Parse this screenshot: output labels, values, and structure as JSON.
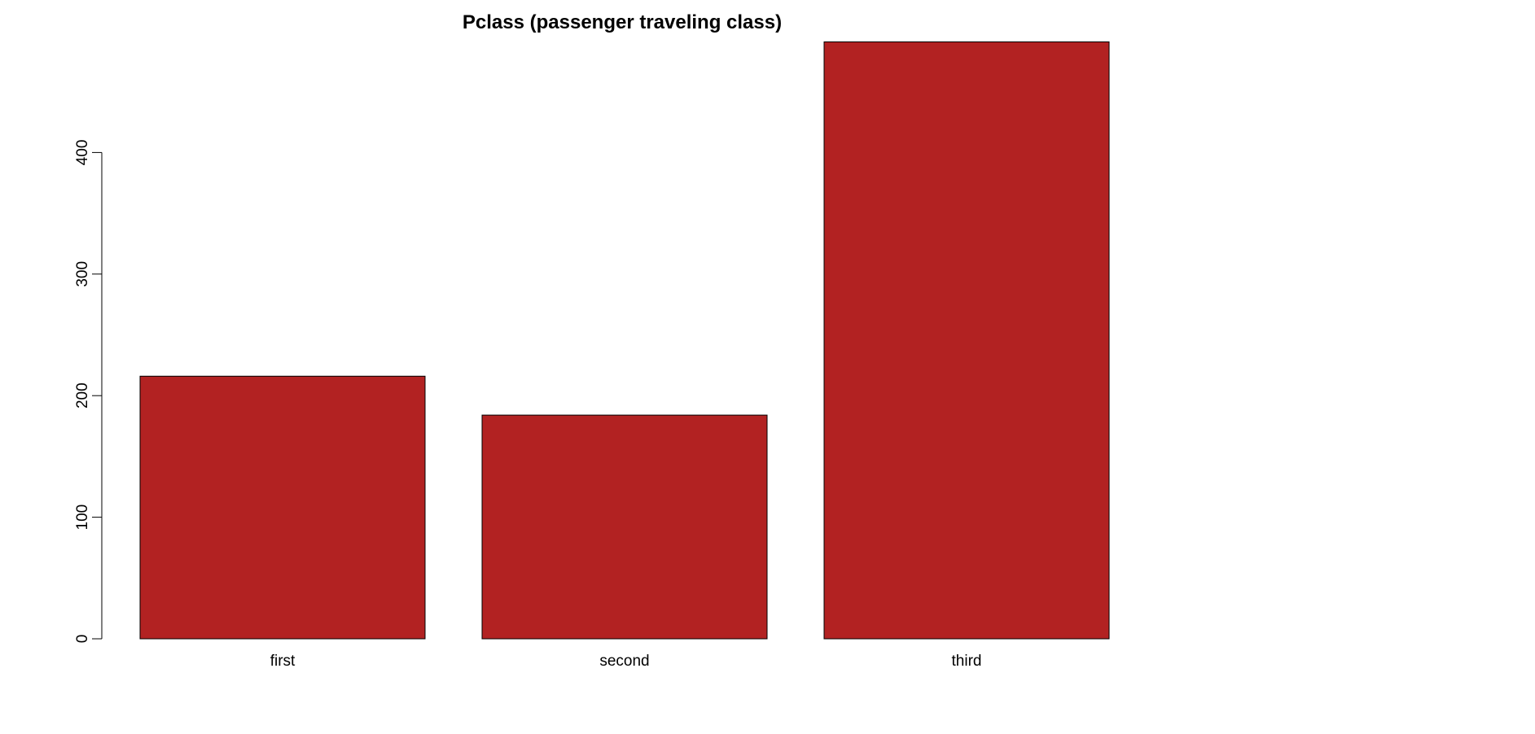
{
  "chart_data": {
    "type": "bar",
    "title": "Pclass (passenger traveling class)",
    "xlabel": "",
    "ylabel": "",
    "categories": [
      "first",
      "second",
      "third"
    ],
    "values": [
      216,
      184,
      491
    ],
    "ylim": [
      0,
      491
    ],
    "yticks": [
      0,
      100,
      200,
      300,
      400
    ],
    "ytick_labels": [
      "0",
      "100",
      "200",
      "300",
      "400"
    ],
    "grid": false,
    "legend": "none",
    "bar_color": "#b22222",
    "bar_border_color": "#000000"
  }
}
